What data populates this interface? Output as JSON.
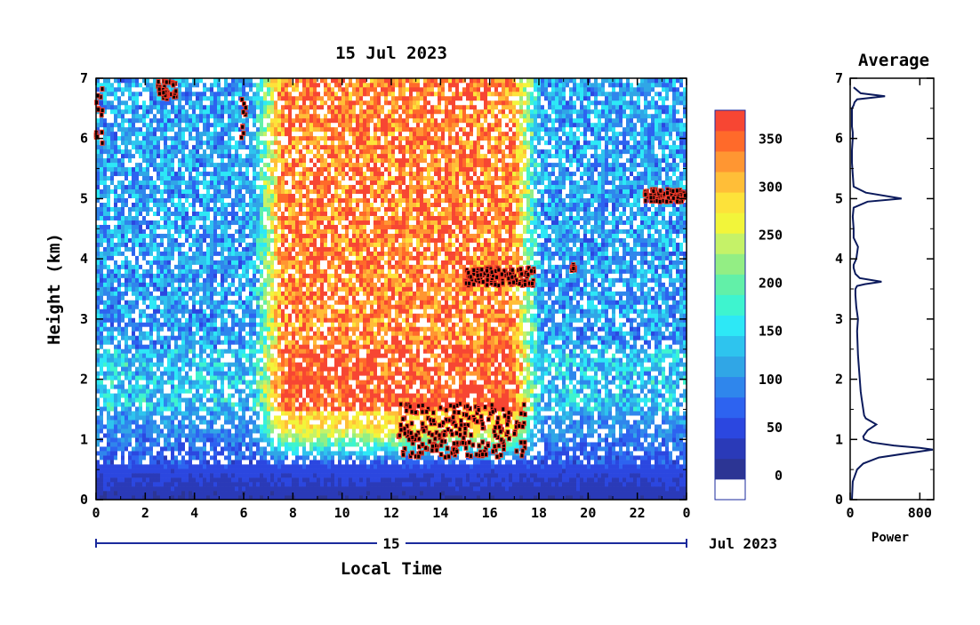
{
  "chart_data": [
    {
      "type": "heatmap",
      "title": "15 Jul 2023",
      "xlabel": "Local Time",
      "ylabel": "Height (km)",
      "x_ticks": [
        "0",
        "2",
        "4",
        "6",
        "8",
        "10",
        "12",
        "14",
        "16",
        "18",
        "20",
        "22",
        "0"
      ],
      "y_ticks": [
        "0",
        "1",
        "2",
        "3",
        "4",
        "5",
        "6",
        "7"
      ],
      "xlim": [
        0,
        24
      ],
      "ylim": [
        0,
        7
      ],
      "date_axis": {
        "day_label": "15",
        "month_label": "Jul 2023"
      },
      "colorbar": {
        "ticks": [
          "0",
          "50",
          "100",
          "150",
          "200",
          "250",
          "300",
          "350"
        ],
        "range": [
          -25,
          380
        ],
        "colors": [
          "#ffffff",
          "#2c3594",
          "#2a3ab8",
          "#2b47e0",
          "#2d63f0",
          "#2f86ec",
          "#30a6e6",
          "#2ec4ee",
          "#2de8f6",
          "#3ef4cf",
          "#62f0a8",
          "#93ee84",
          "#c5f268",
          "#f2f53a",
          "#fde23a",
          "#ffbe38",
          "#ff9632",
          "#ff6a2a",
          "#f74633"
        ]
      },
      "features": {
        "background_level": 110,
        "daytime_enhancement": {
          "start_hour": 7.0,
          "end_hour": 17.5,
          "level": 340
        },
        "boundary_layer_top_km": 0.6,
        "strong_echo_segments": [
          {
            "x": [
              0.0,
              0.3
            ],
            "y": [
              5.9,
              6.9
            ]
          },
          {
            "x": [
              2.5,
              3.3
            ],
            "y": [
              6.65,
              6.95
            ]
          },
          {
            "x": [
              5.9,
              6.1
            ],
            "y": [
              6.0,
              6.9
            ]
          },
          {
            "x": [
              12.2,
              17.5
            ],
            "y": [
              0.7,
              1.6
            ]
          },
          {
            "x": [
              15.0,
              17.8
            ],
            "y": [
              3.55,
              3.85
            ]
          },
          {
            "x": [
              19.3,
              19.5
            ],
            "y": [
              3.8,
              3.9
            ]
          },
          {
            "x": [
              22.3,
              24.0
            ],
            "y": [
              4.95,
              5.15
            ]
          }
        ]
      }
    },
    {
      "type": "line",
      "title": "Average",
      "xlabel": "Power",
      "ylabel": "",
      "x_ticks": [
        "0",
        "800"
      ],
      "y_ticks": [
        "0",
        "1",
        "2",
        "3",
        "4",
        "5",
        "6",
        "7"
      ],
      "xlim": [
        0,
        960
      ],
      "ylim": [
        0,
        7
      ],
      "series": [
        {
          "x": [
            20,
            30,
            80,
            150,
            330,
            700,
            950,
            800,
            500,
            250,
            160,
            150,
            200,
            300,
            240,
            180,
            160,
            150,
            140,
            130,
            120,
            110,
            100,
            90,
            85,
            80,
            90,
            70,
            60,
            60,
            80,
            170,
            360,
            110,
            60,
            40,
            40,
            70,
            90,
            40,
            40,
            30,
            40,
            200,
            590,
            180,
            40,
            30,
            20,
            20,
            30,
            30,
            20,
            20,
            20,
            20,
            40,
            50,
            80,
            400,
            120,
            40
          ],
          "y": [
            0.0,
            0.3,
            0.5,
            0.6,
            0.7,
            0.78,
            0.83,
            0.86,
            0.9,
            0.95,
            1.0,
            1.05,
            1.15,
            1.25,
            1.3,
            1.35,
            1.4,
            1.5,
            1.6,
            1.7,
            1.8,
            2.0,
            2.2,
            2.4,
            2.6,
            2.8,
            3.0,
            3.2,
            3.4,
            3.5,
            3.55,
            3.58,
            3.62,
            3.68,
            3.75,
            3.85,
            3.9,
            4.0,
            4.2,
            4.35,
            4.5,
            4.7,
            4.85,
            4.95,
            5.0,
            5.1,
            5.2,
            5.4,
            5.6,
            5.8,
            6.0,
            6.1,
            6.2,
            6.3,
            6.4,
            6.5,
            6.55,
            6.6,
            6.65,
            6.7,
            6.75,
            6.85
          ]
        }
      ]
    }
  ]
}
